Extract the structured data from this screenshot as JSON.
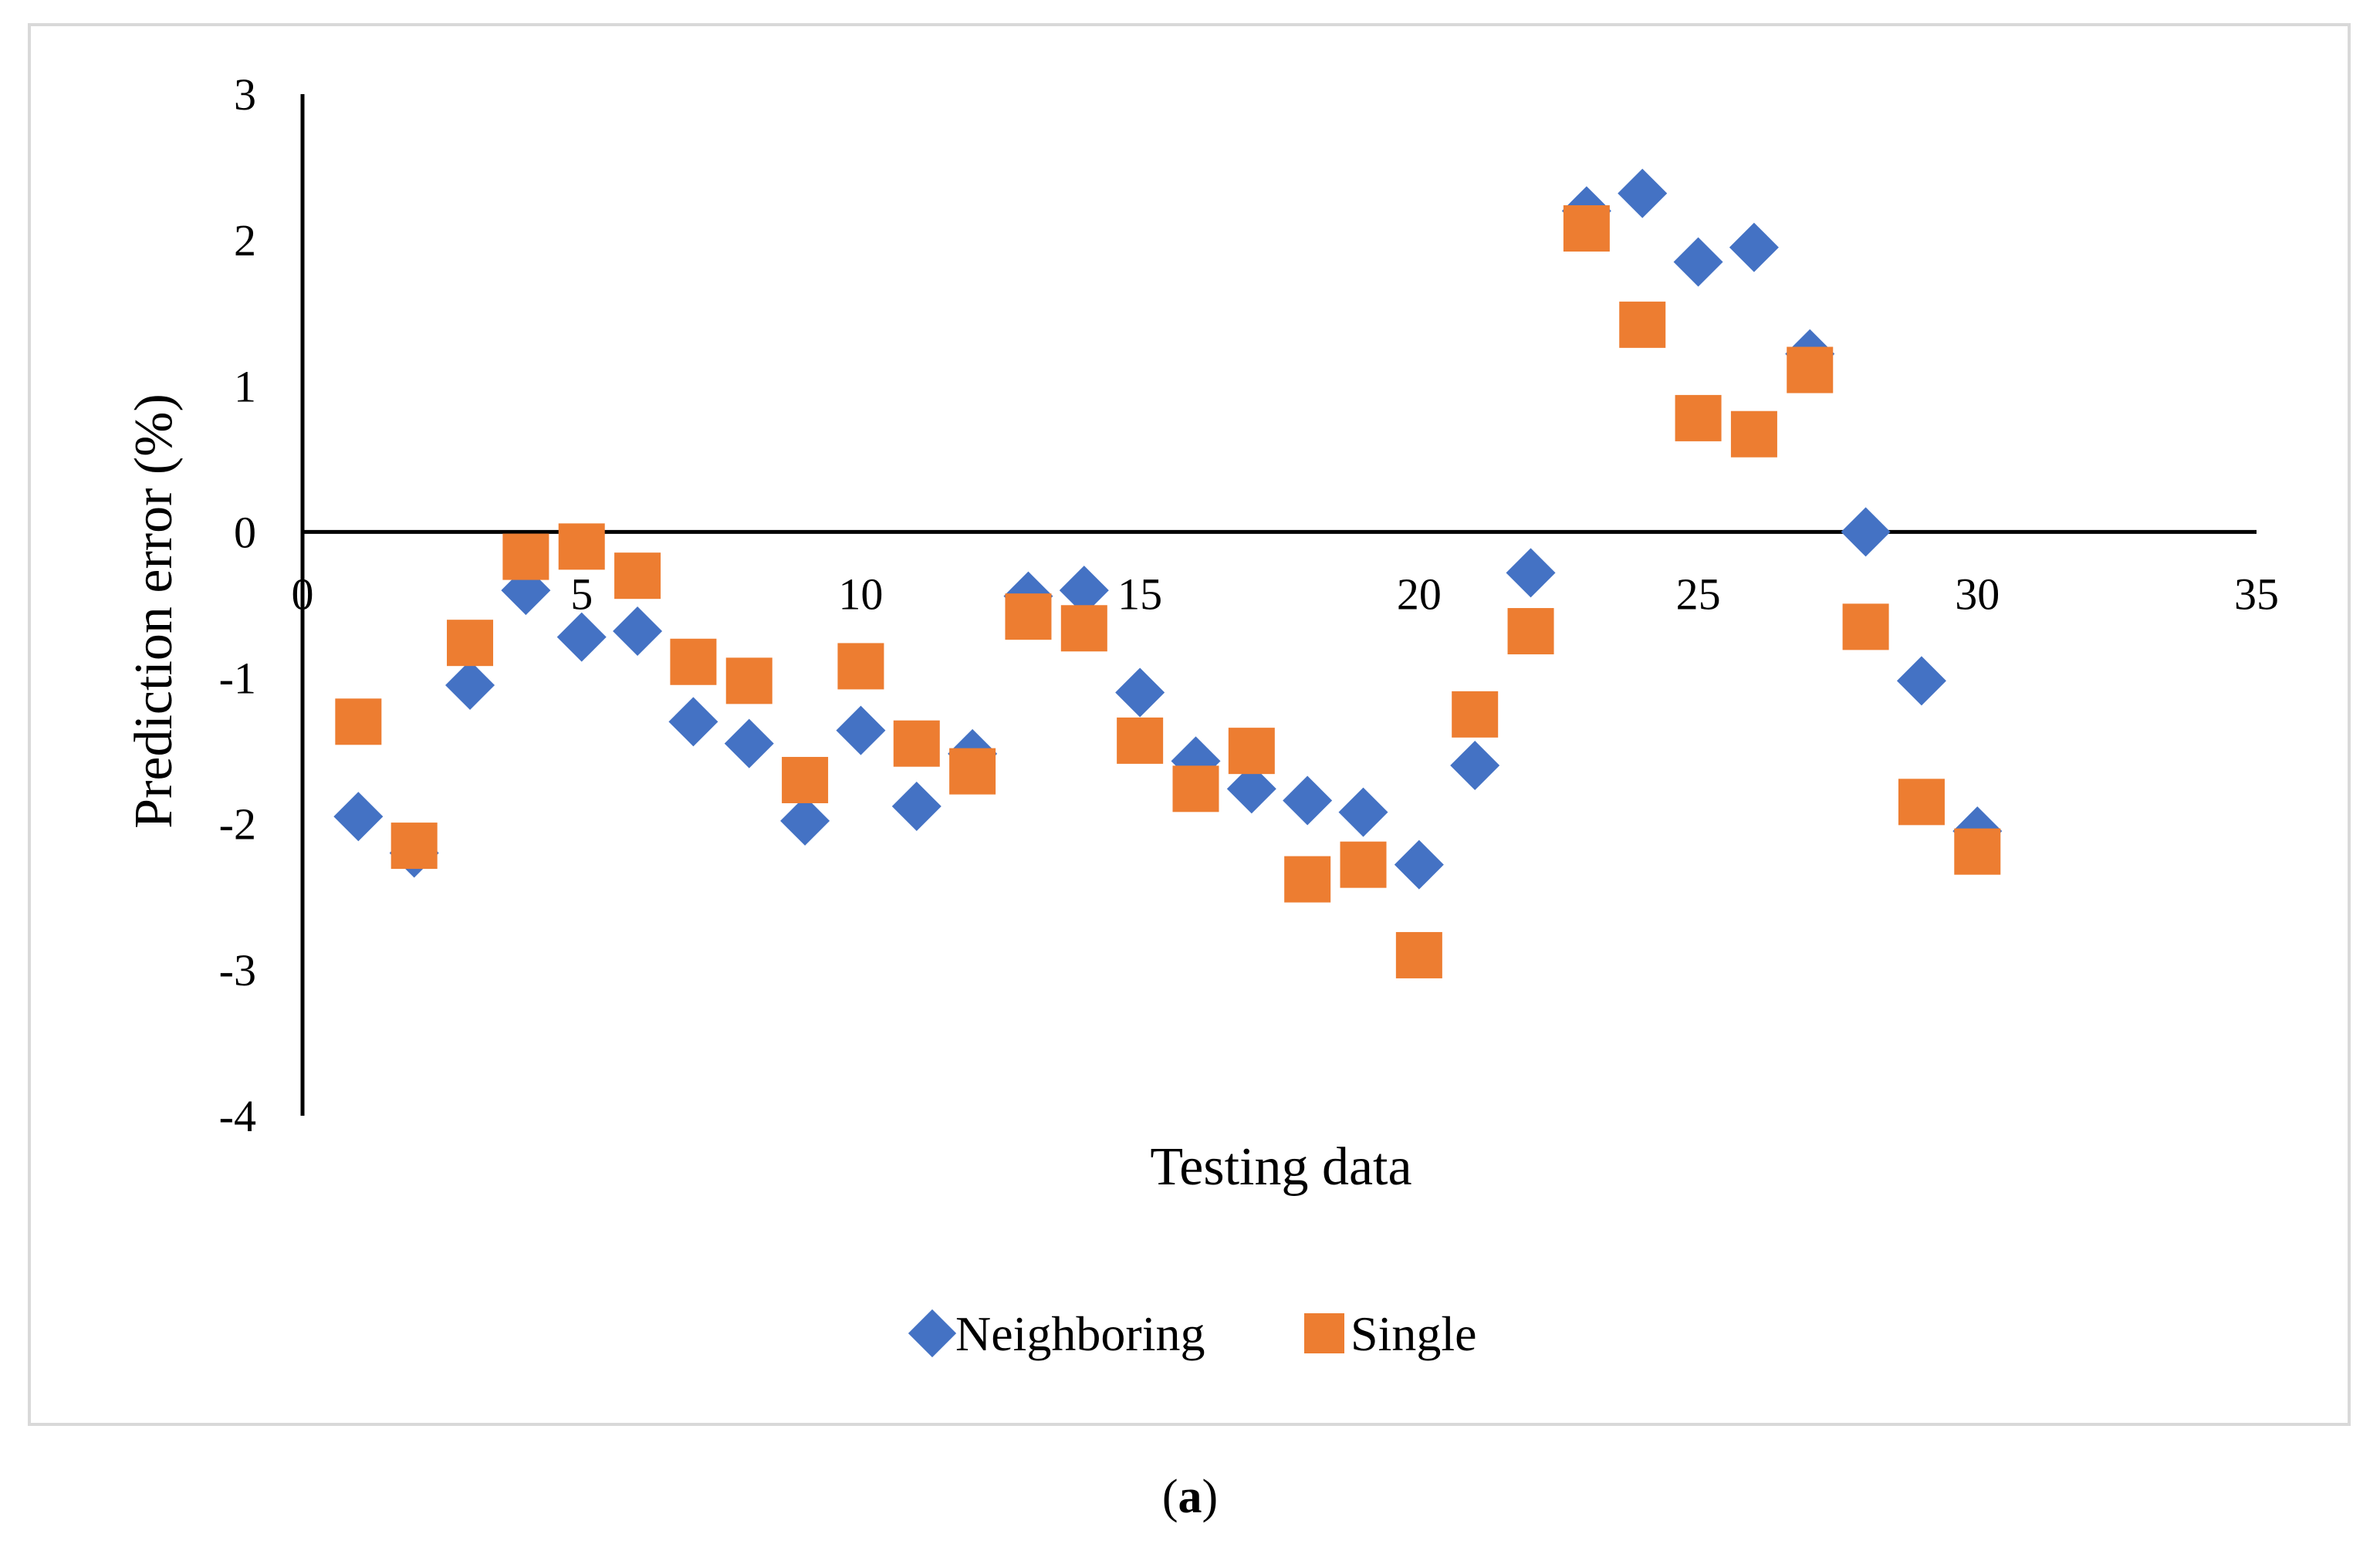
{
  "chart_data": {
    "type": "scatter",
    "title": "",
    "xlabel": "Testing data",
    "ylabel": "Prediction error (%)",
    "xlim": [
      0,
      35
    ],
    "ylim": [
      -4,
      3
    ],
    "xticks": [
      "0",
      "5",
      "10",
      "15",
      "20",
      "25",
      "30",
      "35"
    ],
    "yticks": [
      "-4",
      "-3",
      "-2",
      "-1",
      "0",
      "1",
      "2",
      "3"
    ],
    "legend_position": "bottom",
    "series": [
      {
        "name": "Neighboring",
        "marker": "diamond",
        "color": "#4472c4",
        "x": [
          1,
          2,
          3,
          4,
          5,
          6,
          7,
          8,
          9,
          10,
          11,
          12,
          13,
          14,
          15,
          16,
          17,
          18,
          19,
          20,
          21,
          22,
          23,
          24,
          25,
          26,
          27,
          28,
          29,
          30
        ],
        "y": [
          -1.95,
          -2.2,
          -1.05,
          -0.4,
          -0.72,
          -0.68,
          -1.3,
          -1.45,
          -1.98,
          -1.36,
          -1.88,
          -1.52,
          -0.44,
          -0.4,
          -1.1,
          -1.57,
          -1.76,
          -1.84,
          -1.92,
          -2.28,
          -1.6,
          -0.28,
          2.2,
          2.32,
          1.85,
          1.95,
          1.22,
          0.0,
          -1.02,
          -2.05
        ]
      },
      {
        "name": "Single",
        "marker": "square",
        "color": "#ed7d31",
        "x": [
          1,
          2,
          3,
          4,
          5,
          6,
          7,
          8,
          9,
          10,
          11,
          12,
          13,
          14,
          15,
          16,
          17,
          18,
          19,
          20,
          21,
          22,
          23,
          24,
          25,
          26,
          27,
          28,
          29,
          30
        ],
        "y": [
          -1.3,
          -2.15,
          -0.76,
          -0.17,
          -0.1,
          -0.3,
          -0.89,
          -1.02,
          -1.7,
          -0.92,
          -1.45,
          -1.64,
          -0.58,
          -0.66,
          -1.43,
          -1.76,
          -1.5,
          -2.38,
          -2.28,
          -2.9,
          -1.25,
          -0.68,
          2.08,
          1.42,
          0.78,
          0.67,
          1.11,
          -0.65,
          -1.85,
          -2.19
        ]
      }
    ]
  },
  "caption": {
    "open": "(",
    "label": "a",
    "close": ")"
  }
}
